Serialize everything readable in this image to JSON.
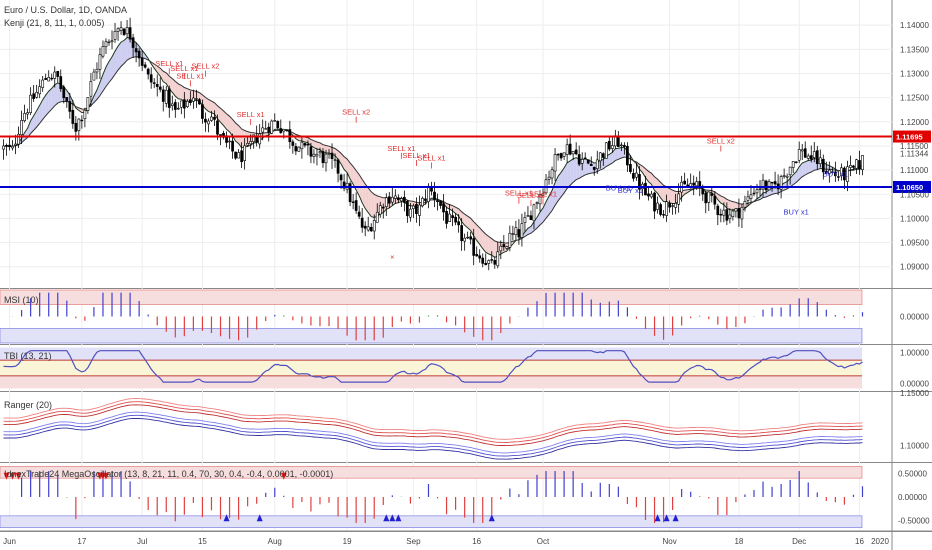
{
  "header": {
    "symbol_title": "Euro / U.S. Dollar, 1D, OANDA",
    "indicator_title": "Kenji (21, 8, 11, 1, 0.005)"
  },
  "panes": {
    "msi_title": "MSI (10)",
    "tbi_title": "TBI (13, 21)",
    "ranger_title": "Ranger (20)",
    "osc_title": "IdnexTrade24 MegaOscillator (13, 8, 21, 11, 0.4, 70, 30, 0.4, -0.4, 0.0001, -0.0001)"
  },
  "colors": {
    "up_candle": "#ffffff",
    "down_candle": "#000000",
    "resistance_line": "#e00000",
    "support_line": "#0000cc",
    "sell_signal": "#e03030",
    "buy_signal": "#3030d0",
    "bull_cloud": "#c9c9f0",
    "bear_cloud": "#f3cccc"
  },
  "chart_data": [
    {
      "type": "candlestick",
      "title": "Euro / U.S. Dollar, 1D, OANDA",
      "x_tick_labels": [
        "Jun",
        "17",
        "Jul",
        "15",
        "Aug",
        "19",
        "Sep",
        "16",
        "Oct",
        "Nov",
        "18",
        "Dec",
        "16",
        "2020"
      ],
      "y_tick_labels": [
        "1.14000",
        "1.13500",
        "1.13000",
        "1.12500",
        "1.12000",
        "1.11500",
        "1.11000",
        "1.10500",
        "1.10000",
        "1.09500",
        "1.09000"
      ],
      "ylim": [
        1.0858,
        1.1448
      ],
      "close_path": [
        [
          0,
          1.1145
        ],
        [
          3,
          1.114
        ],
        [
          6,
          1.121
        ],
        [
          9,
          1.124
        ],
        [
          12,
          1.127
        ],
        [
          15,
          1.13
        ],
        [
          18,
          1.129
        ],
        [
          21,
          1.123
        ],
        [
          24,
          1.119
        ],
        [
          27,
          1.123
        ],
        [
          30,
          1.13
        ],
        [
          33,
          1.135
        ],
        [
          36,
          1.138
        ],
        [
          39,
          1.14
        ],
        [
          42,
          1.138
        ],
        [
          45,
          1.134
        ],
        [
          48,
          1.129
        ],
        [
          51,
          1.127
        ],
        [
          54,
          1.125
        ],
        [
          57,
          1.122
        ],
        [
          60,
          1.1235
        ],
        [
          63,
          1.1255
        ],
        [
          66,
          1.1215
        ],
        [
          69,
          1.121
        ],
        [
          72,
          1.1165
        ],
        [
          75,
          1.1145
        ],
        [
          78,
          1.1125
        ],
        [
          81,
          1.114
        ],
        [
          84,
          1.117
        ],
        [
          87,
          1.119
        ],
        [
          90,
          1.12
        ],
        [
          93,
          1.1185
        ],
        [
          96,
          1.116
        ],
        [
          99,
          1.1145
        ],
        [
          102,
          1.1135
        ],
        [
          105,
          1.113
        ],
        [
          108,
          1.112
        ],
        [
          111,
          1.11
        ],
        [
          114,
          1.106
        ],
        [
          117,
          1.101
        ],
        [
          120,
          1.097
        ],
        [
          123,
          1.1
        ],
        [
          126,
          1.1035
        ],
        [
          129,
          1.105
        ],
        [
          132,
          1.103
        ],
        [
          135,
          1.101
        ],
        [
          138,
          1.102
        ],
        [
          141,
          1.106
        ],
        [
          144,
          1.104
        ],
        [
          147,
          1.1
        ],
        [
          150,
          1.098
        ],
        [
          153,
          1.0955
        ],
        [
          156,
          1.0935
        ],
        [
          159,
          1.092
        ],
        [
          162,
          1.09
        ],
        [
          165,
          1.093
        ],
        [
          168,
          1.096
        ],
        [
          171,
          1.097
        ],
        [
          174,
          1.1
        ],
        [
          177,
          1.104
        ],
        [
          180,
          1.108
        ],
        [
          183,
          1.112
        ],
        [
          186,
          1.115
        ],
        [
          189,
          1.114
        ],
        [
          192,
          1.112
        ],
        [
          195,
          1.111
        ],
        [
          198,
          1.113
        ],
        [
          201,
          1.115
        ],
        [
          204,
          1.116
        ],
        [
          207,
          1.112
        ],
        [
          210,
          1.108
        ],
        [
          213,
          1.105
        ],
        [
          216,
          1.103
        ],
        [
          219,
          1.102
        ],
        [
          222,
          1.104
        ],
        [
          225,
          1.106
        ],
        [
          228,
          1.107
        ],
        [
          231,
          1.106
        ],
        [
          234,
          1.104
        ],
        [
          237,
          1.102
        ],
        [
          240,
          1.101
        ],
        [
          243,
          1.101
        ],
        [
          246,
          1.103
        ],
        [
          249,
          1.106
        ],
        [
          252,
          1.107
        ],
        [
          255,
          1.106
        ],
        [
          258,
          1.108
        ],
        [
          261,
          1.111
        ],
        [
          264,
          1.114
        ],
        [
          267,
          1.113
        ],
        [
          270,
          1.112
        ],
        [
          273,
          1.11
        ],
        [
          276,
          1.109
        ],
        [
          279,
          1.109
        ],
        [
          282,
          1.11
        ],
        [
          285,
          1.112
        ]
      ],
      "horizontal_levels": [
        {
          "price": 1.11695,
          "label": "1.11695",
          "color": "resistance"
        },
        {
          "price": 1.1065,
          "label": "1.10650",
          "color": "support"
        }
      ],
      "current_price_label": "1.11344",
      "signals": [
        {
          "label": "SELL x1",
          "type": "sell",
          "x": 55,
          "price": 1.1315
        },
        {
          "label": "SELL x1",
          "type": "sell",
          "x": 60,
          "price": 1.1305
        },
        {
          "label": "SELL x1",
          "type": "sell",
          "x": 62,
          "price": 1.129
        },
        {
          "label": "SELL x2",
          "type": "sell",
          "x": 67,
          "price": 1.131
        },
        {
          "label": "SELL x1",
          "type": "sell",
          "x": 82,
          "price": 1.121
        },
        {
          "label": "SELL x2",
          "type": "sell",
          "x": 117,
          "price": 1.1215
        },
        {
          "label": "SELL x1",
          "type": "sell",
          "x": 132,
          "price": 1.114
        },
        {
          "label": "SELL x1",
          "type": "sell",
          "x": 137,
          "price": 1.1125
        },
        {
          "label": "SELL x1",
          "type": "sell",
          "x": 142,
          "price": 1.112
        },
        {
          "label": "SELL x1",
          "type": "sell",
          "x": 171,
          "price": 1.1047
        },
        {
          "label": "SELL x1",
          "type": "sell",
          "x": 175,
          "price": 1.1042
        },
        {
          "label": "SELL x1",
          "type": "sell",
          "x": 179,
          "price": 1.1045
        },
        {
          "label": "SELL x2",
          "type": "sell",
          "x": 238,
          "price": 1.1155
        },
        {
          "label": "BUY x1",
          "type": "buy",
          "x": 204,
          "price": 1.1058
        },
        {
          "label": "BUY x1",
          "type": "buy",
          "x": 208,
          "price": 1.1053
        },
        {
          "label": "BUY x1",
          "type": "buy",
          "x": 263,
          "price": 1.1008
        },
        {
          "label": "BUY x1",
          "type": "buy",
          "x": 276,
          "price": 1.1087
        }
      ]
    },
    {
      "type": "bar",
      "title": "MSI (10)",
      "y_tick_labels": [
        "0.00000"
      ],
      "ylim": [
        -1,
        1
      ]
    },
    {
      "type": "line",
      "title": "TBI (13, 21)",
      "y_tick_labels": [
        "1.00000",
        "0.00000"
      ],
      "ylim": [
        -0.2,
        1.2
      ]
    },
    {
      "type": "line",
      "title": "Ranger (20)",
      "y_tick_labels": [
        "1.15000",
        "1.10000"
      ],
      "ylim": [
        1.085,
        1.15
      ]
    },
    {
      "type": "bar",
      "title": "IdnexTrade24 MegaOscillator (13, 8, 21, 11, 0.4, 70, 30, 0.4, -0.4, 0.0001, -0.0001)",
      "y_tick_labels": [
        "0.50000",
        "0.00000",
        "-0.50000"
      ],
      "ylim": [
        -0.7,
        0.7
      ],
      "buy_arrows_x": [
        74,
        85,
        127,
        129,
        131,
        162,
        217,
        220,
        223
      ],
      "sell_arrows_x": [
        1,
        3,
        5,
        32,
        33,
        34,
        93
      ]
    }
  ]
}
